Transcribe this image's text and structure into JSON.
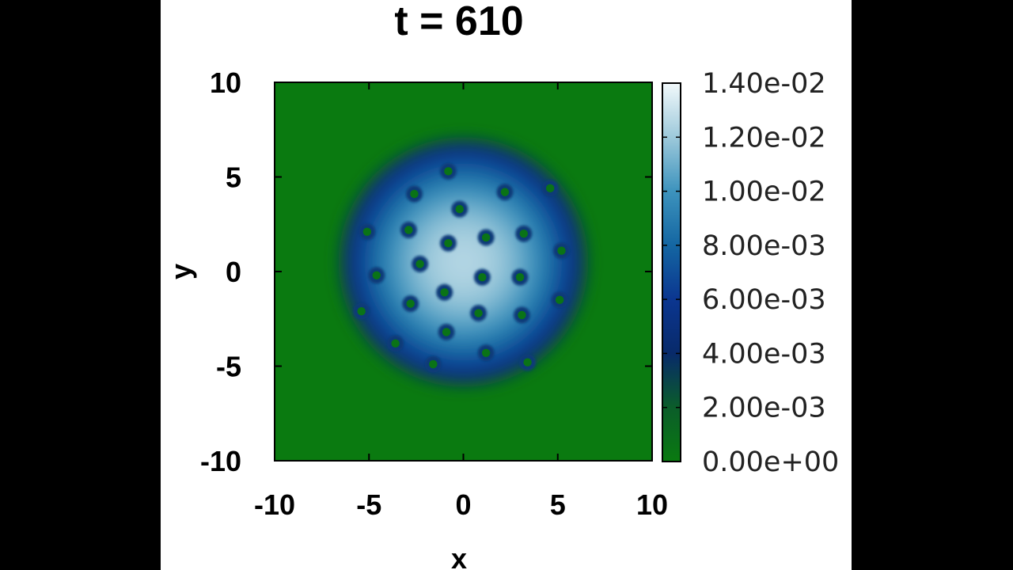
{
  "chart_data": {
    "type": "heatmap",
    "title": "t = 610",
    "xlabel": "x",
    "ylabel": "y",
    "xlim": [
      -10,
      10
    ],
    "ylim": [
      -10,
      10
    ],
    "xticks": [
      "-10",
      "-5",
      "0",
      "5",
      "10"
    ],
    "yticks": [
      "10",
      "5",
      "0",
      "-5",
      "-10"
    ],
    "colorbar": {
      "min": 0.0,
      "max": 0.014,
      "ticks": [
        "1.40e-02",
        "1.20e-02",
        "1.00e-02",
        "8.00e-03",
        "6.00e-03",
        "4.00e-03",
        "2.00e-03",
        "0.00e+00"
      ],
      "colors": [
        "#0a7a10",
        "#0b5d2a",
        "#082a6a",
        "#0b3690",
        "#1466a2",
        "#3d93bd",
        "#9dc9db",
        "#f2f9fb"
      ]
    },
    "field": {
      "description_free": true,
      "condensate_center": [
        0.0,
        0.5
      ],
      "condensate_radius": 6.2,
      "peak_value": 0.0125,
      "edge_value": 0.0045,
      "background_value": 0.0,
      "vortex_core_value": 0.0005
    },
    "vortices": [
      [
        -0.8,
        5.3
      ],
      [
        -2.6,
        4.1
      ],
      [
        2.2,
        4.2
      ],
      [
        -0.2,
        3.3
      ],
      [
        4.6,
        4.4
      ],
      [
        -5.1,
        2.1
      ],
      [
        -2.9,
        2.2
      ],
      [
        -0.8,
        1.5
      ],
      [
        1.2,
        1.8
      ],
      [
        3.2,
        2.0
      ],
      [
        5.2,
        1.1
      ],
      [
        -4.6,
        -0.2
      ],
      [
        -2.3,
        0.4
      ],
      [
        1.0,
        -0.3
      ],
      [
        3.0,
        -0.3
      ],
      [
        -5.4,
        -2.1
      ],
      [
        -2.8,
        -1.7
      ],
      [
        -1.0,
        -1.1
      ],
      [
        0.8,
        -2.2
      ],
      [
        3.1,
        -2.3
      ],
      [
        5.1,
        -1.5
      ],
      [
        -3.6,
        -3.8
      ],
      [
        -0.9,
        -3.2
      ],
      [
        1.2,
        -4.3
      ],
      [
        -1.6,
        -4.9
      ],
      [
        3.4,
        -4.8
      ]
    ]
  }
}
